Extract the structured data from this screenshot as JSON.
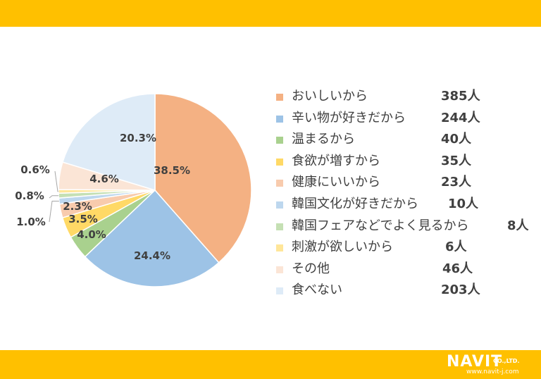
{
  "brand": {
    "logo_main": "NAVIT",
    "logo_sub": "CO.,LTD.",
    "url": "www.navit-j.com",
    "band_color": "#ffc000"
  },
  "chart_data": {
    "type": "pie",
    "slices": [
      {
        "label": "おいしいから",
        "count": "385人",
        "value": 38.5,
        "display": "38.5%",
        "color": "#f4b183"
      },
      {
        "label": "辛い物が好きだから",
        "count": "244人",
        "value": 24.4,
        "display": "24.4%",
        "color": "#9dc3e6"
      },
      {
        "label": "温まるから",
        "count": "40人",
        "value": 4.0,
        "display": "4.0%",
        "color": "#a9d18e"
      },
      {
        "label": "食欲が増すから",
        "count": "35人",
        "value": 3.5,
        "display": "3.5%",
        "color": "#ffd966"
      },
      {
        "label": "健康にいいから",
        "count": "23人",
        "value": 2.3,
        "display": "2.3%",
        "color": "#f8cbad"
      },
      {
        "label": "韓国文化が好きだから",
        "count": "10人",
        "value": 1.0,
        "display": "1.0%",
        "color": "#bdd7ee"
      },
      {
        "label": "韓国フェアなどでよく見るから",
        "count": "8人",
        "value": 0.8,
        "display": "0.8%",
        "color": "#c5e0b4"
      },
      {
        "label": "刺激が欲しいから",
        "count": "6人",
        "value": 0.6,
        "display": "0.6%",
        "color": "#ffe699"
      },
      {
        "label": "その他",
        "count": "46人",
        "value": 4.6,
        "display": "4.6%",
        "color": "#fbe5d6"
      },
      {
        "label": "食べない",
        "count": "203人",
        "value": 20.3,
        "display": "20.3%",
        "color": "#deebf7"
      }
    ]
  }
}
